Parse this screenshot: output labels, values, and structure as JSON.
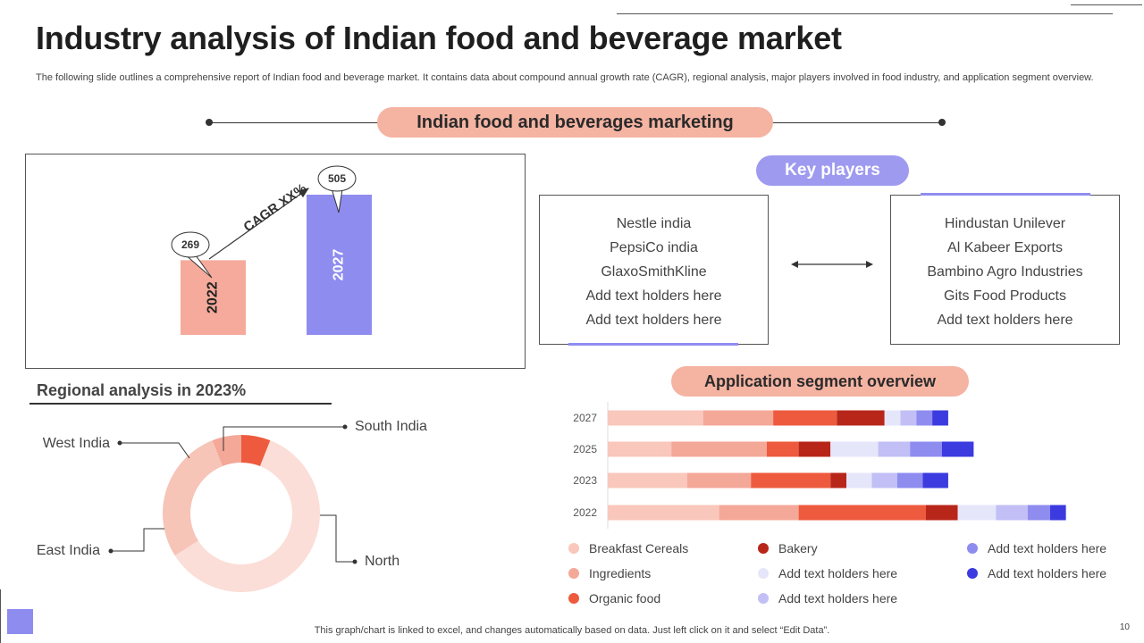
{
  "slide": {
    "title": "Industry analysis of Indian food and beverage market",
    "subtitle": "The following slide outlines a comprehensive report of Indian food and beverage market. It contains data about compound annual growth rate (CAGR), regional analysis, major players involved in food industry, and application segment overview.",
    "banner": "Indian food and beverages marketing",
    "footer": "This graph/chart is linked to excel,  and changes automatically based on data. Just left click on it and select “Edit Data”.",
    "page_number": "10"
  },
  "key_players": {
    "heading": "Key players",
    "left": [
      "Nestle india",
      "PepsiCo india",
      "GlaxoSmithKline",
      "Add text holders here",
      "Add text holders here"
    ],
    "right": [
      "Hindustan Unilever",
      "Al Kabeer Exports",
      "Bambino Agro Industries",
      "Gits Food Products",
      "Add text holders here"
    ]
  },
  "regional": {
    "heading": "Regional analysis in 2023%"
  },
  "segment": {
    "heading": "Application segment overview"
  },
  "colors": {
    "peach": "#f5aa9b",
    "lavender": "#8f8cf0",
    "dark": "#1f1f1f"
  },
  "chart_data": [
    {
      "type": "bar",
      "title": "",
      "categories": [
        "2022",
        "2027"
      ],
      "values": [
        269,
        505
      ],
      "ylim": [
        0,
        600
      ],
      "annotation": "CAGR XX%",
      "series_colors": [
        "#f5aa9b",
        "#8f8cf0"
      ]
    },
    {
      "type": "pie",
      "title": "Regional analysis in 2023%",
      "donut": true,
      "labels": [
        "South India",
        "North",
        "East India",
        "West India"
      ],
      "values": [
        6,
        60,
        28,
        6
      ],
      "colors": [
        "#ee5a3e",
        "#fbded7",
        "#f7c4b8",
        "#f4a898"
      ]
    },
    {
      "type": "bar",
      "orientation": "horizontal",
      "stacked": true,
      "title": "Application segment overview",
      "categories": [
        "2027",
        "2025",
        "2023",
        "2022"
      ],
      "xlim": [
        0,
        145
      ],
      "series": [
        {
          "name": "Breakfast Cereals",
          "color": "#f9c7bb",
          "values": [
            30,
            20,
            25,
            35
          ]
        },
        {
          "name": "Ingredients",
          "color": "#f4a898",
          "values": [
            22,
            30,
            20,
            25
          ]
        },
        {
          "name": "Organic food",
          "color": "#ee5a3e",
          "values": [
            20,
            10,
            25,
            40
          ]
        },
        {
          "name": "Bakery",
          "color": "#b8261a",
          "values": [
            15,
            10,
            5,
            10
          ]
        },
        {
          "name": "Add text holders here",
          "color": "#e6e6fb",
          "values": [
            5,
            15,
            8,
            12
          ]
        },
        {
          "name": "Add text holders here",
          "color": "#c1bff5",
          "values": [
            5,
            10,
            8,
            10
          ]
        },
        {
          "name": "Add text holders here",
          "color": "#8f8cf0",
          "values": [
            5,
            10,
            8,
            7
          ]
        },
        {
          "name": "Add text holders here",
          "color": "#3b3be0",
          "values": [
            5,
            10,
            8,
            5
          ]
        }
      ]
    }
  ]
}
